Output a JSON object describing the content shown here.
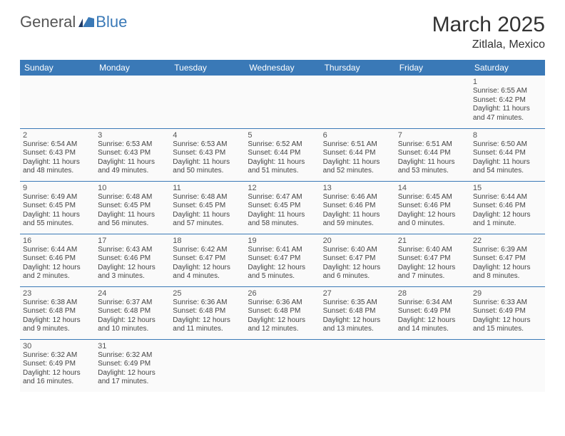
{
  "branding": {
    "logo_part1": "General",
    "logo_part2": "Blue",
    "color_general": "#555555",
    "color_blue": "#3a79b7"
  },
  "title": {
    "month": "March 2025",
    "location": "Zitlala, Mexico"
  },
  "styling": {
    "header_bg": "#3a79b7",
    "header_fg": "#ffffff",
    "cell_border": "#3a79b7",
    "cell_bg": "#fafafa",
    "body_font_size": 10,
    "daynum_font_size": 11,
    "header_font_size": 12,
    "title_font_size": 30,
    "location_font_size": 16
  },
  "weekdays": [
    "Sunday",
    "Monday",
    "Tuesday",
    "Wednesday",
    "Thursday",
    "Friday",
    "Saturday"
  ],
  "weeks": [
    [
      null,
      null,
      null,
      null,
      null,
      null,
      {
        "day": "1",
        "sunrise": "Sunrise: 6:55 AM",
        "sunset": "Sunset: 6:42 PM",
        "daylight": "Daylight: 11 hours and 47 minutes."
      }
    ],
    [
      {
        "day": "2",
        "sunrise": "Sunrise: 6:54 AM",
        "sunset": "Sunset: 6:43 PM",
        "daylight": "Daylight: 11 hours and 48 minutes."
      },
      {
        "day": "3",
        "sunrise": "Sunrise: 6:53 AM",
        "sunset": "Sunset: 6:43 PM",
        "daylight": "Daylight: 11 hours and 49 minutes."
      },
      {
        "day": "4",
        "sunrise": "Sunrise: 6:53 AM",
        "sunset": "Sunset: 6:43 PM",
        "daylight": "Daylight: 11 hours and 50 minutes."
      },
      {
        "day": "5",
        "sunrise": "Sunrise: 6:52 AM",
        "sunset": "Sunset: 6:44 PM",
        "daylight": "Daylight: 11 hours and 51 minutes."
      },
      {
        "day": "6",
        "sunrise": "Sunrise: 6:51 AM",
        "sunset": "Sunset: 6:44 PM",
        "daylight": "Daylight: 11 hours and 52 minutes."
      },
      {
        "day": "7",
        "sunrise": "Sunrise: 6:51 AM",
        "sunset": "Sunset: 6:44 PM",
        "daylight": "Daylight: 11 hours and 53 minutes."
      },
      {
        "day": "8",
        "sunrise": "Sunrise: 6:50 AM",
        "sunset": "Sunset: 6:44 PM",
        "daylight": "Daylight: 11 hours and 54 minutes."
      }
    ],
    [
      {
        "day": "9",
        "sunrise": "Sunrise: 6:49 AM",
        "sunset": "Sunset: 6:45 PM",
        "daylight": "Daylight: 11 hours and 55 minutes."
      },
      {
        "day": "10",
        "sunrise": "Sunrise: 6:48 AM",
        "sunset": "Sunset: 6:45 PM",
        "daylight": "Daylight: 11 hours and 56 minutes."
      },
      {
        "day": "11",
        "sunrise": "Sunrise: 6:48 AM",
        "sunset": "Sunset: 6:45 PM",
        "daylight": "Daylight: 11 hours and 57 minutes."
      },
      {
        "day": "12",
        "sunrise": "Sunrise: 6:47 AM",
        "sunset": "Sunset: 6:45 PM",
        "daylight": "Daylight: 11 hours and 58 minutes."
      },
      {
        "day": "13",
        "sunrise": "Sunrise: 6:46 AM",
        "sunset": "Sunset: 6:46 PM",
        "daylight": "Daylight: 11 hours and 59 minutes."
      },
      {
        "day": "14",
        "sunrise": "Sunrise: 6:45 AM",
        "sunset": "Sunset: 6:46 PM",
        "daylight": "Daylight: 12 hours and 0 minutes."
      },
      {
        "day": "15",
        "sunrise": "Sunrise: 6:44 AM",
        "sunset": "Sunset: 6:46 PM",
        "daylight": "Daylight: 12 hours and 1 minute."
      }
    ],
    [
      {
        "day": "16",
        "sunrise": "Sunrise: 6:44 AM",
        "sunset": "Sunset: 6:46 PM",
        "daylight": "Daylight: 12 hours and 2 minutes."
      },
      {
        "day": "17",
        "sunrise": "Sunrise: 6:43 AM",
        "sunset": "Sunset: 6:46 PM",
        "daylight": "Daylight: 12 hours and 3 minutes."
      },
      {
        "day": "18",
        "sunrise": "Sunrise: 6:42 AM",
        "sunset": "Sunset: 6:47 PM",
        "daylight": "Daylight: 12 hours and 4 minutes."
      },
      {
        "day": "19",
        "sunrise": "Sunrise: 6:41 AM",
        "sunset": "Sunset: 6:47 PM",
        "daylight": "Daylight: 12 hours and 5 minutes."
      },
      {
        "day": "20",
        "sunrise": "Sunrise: 6:40 AM",
        "sunset": "Sunset: 6:47 PM",
        "daylight": "Daylight: 12 hours and 6 minutes."
      },
      {
        "day": "21",
        "sunrise": "Sunrise: 6:40 AM",
        "sunset": "Sunset: 6:47 PM",
        "daylight": "Daylight: 12 hours and 7 minutes."
      },
      {
        "day": "22",
        "sunrise": "Sunrise: 6:39 AM",
        "sunset": "Sunset: 6:47 PM",
        "daylight": "Daylight: 12 hours and 8 minutes."
      }
    ],
    [
      {
        "day": "23",
        "sunrise": "Sunrise: 6:38 AM",
        "sunset": "Sunset: 6:48 PM",
        "daylight": "Daylight: 12 hours and 9 minutes."
      },
      {
        "day": "24",
        "sunrise": "Sunrise: 6:37 AM",
        "sunset": "Sunset: 6:48 PM",
        "daylight": "Daylight: 12 hours and 10 minutes."
      },
      {
        "day": "25",
        "sunrise": "Sunrise: 6:36 AM",
        "sunset": "Sunset: 6:48 PM",
        "daylight": "Daylight: 12 hours and 11 minutes."
      },
      {
        "day": "26",
        "sunrise": "Sunrise: 6:36 AM",
        "sunset": "Sunset: 6:48 PM",
        "daylight": "Daylight: 12 hours and 12 minutes."
      },
      {
        "day": "27",
        "sunrise": "Sunrise: 6:35 AM",
        "sunset": "Sunset: 6:48 PM",
        "daylight": "Daylight: 12 hours and 13 minutes."
      },
      {
        "day": "28",
        "sunrise": "Sunrise: 6:34 AM",
        "sunset": "Sunset: 6:49 PM",
        "daylight": "Daylight: 12 hours and 14 minutes."
      },
      {
        "day": "29",
        "sunrise": "Sunrise: 6:33 AM",
        "sunset": "Sunset: 6:49 PM",
        "daylight": "Daylight: 12 hours and 15 minutes."
      }
    ],
    [
      {
        "day": "30",
        "sunrise": "Sunrise: 6:32 AM",
        "sunset": "Sunset: 6:49 PM",
        "daylight": "Daylight: 12 hours and 16 minutes."
      },
      {
        "day": "31",
        "sunrise": "Sunrise: 6:32 AM",
        "sunset": "Sunset: 6:49 PM",
        "daylight": "Daylight: 12 hours and 17 minutes."
      },
      null,
      null,
      null,
      null,
      null
    ]
  ]
}
